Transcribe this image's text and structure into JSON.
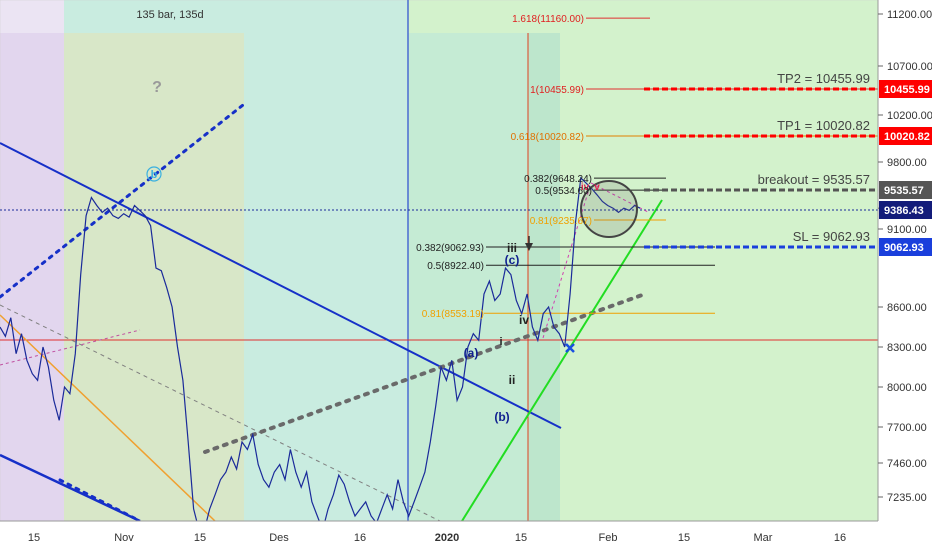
{
  "chart_data": {
    "type": "line",
    "top_label": "135 bar, 135d",
    "question_mark": "?",
    "x_ticks": [
      "15",
      "Nov",
      "15",
      "Des",
      "16",
      "2020",
      "15",
      "Feb",
      "15",
      "Mar",
      "16"
    ],
    "y_ticks": [
      11200.0,
      10700.0,
      10200.0,
      9800.0,
      9400.0,
      9100.0,
      8600.0,
      8300.0,
      8000.0,
      7700.0,
      7460.0,
      7235.0
    ],
    "ylim": [
      7070,
      11350
    ],
    "price_badges": [
      {
        "text": "10455.99",
        "value": 10455.99,
        "color": "#ff0000"
      },
      {
        "text": "10020.82",
        "value": 10020.82,
        "color": "#ff0000"
      },
      {
        "text": "9535.57",
        "value": 9535.57,
        "color": "#555555"
      },
      {
        "text": "9386.43",
        "value": 9386.43,
        "color": "#131c7a"
      },
      {
        "text": "9062.93",
        "value": 9062.93,
        "color": "#1a3fdc"
      }
    ],
    "targets": [
      {
        "text": "TP2 = 10455.99",
        "value": 10455.99,
        "color": "#ff0000"
      },
      {
        "text": "TP1 = 10020.82",
        "value": 10020.82,
        "color": "#ff0000"
      },
      {
        "text": "breakout = 9535.57",
        "value": 9535.57,
        "color": "#555555"
      },
      {
        "text": "SL = 9062.93",
        "value": 9062.93,
        "color": "#1a3fdc"
      }
    ],
    "fib_extension": [
      {
        "text": "1.618(11160.00)",
        "value": 11160.0
      },
      {
        "text": "1(10455.99)",
        "value": 10455.99
      },
      {
        "text": "0.618(10020.82)",
        "value": 10020.82
      }
    ],
    "fib_upper": [
      {
        "text": "0.382(9648.24)",
        "value": 9648.24
      },
      {
        "text": "0.5(9534.60)",
        "value": 9534.6
      },
      {
        "text": "0.81(9235.67)",
        "value": 9235.67
      }
    ],
    "fib_lower": [
      {
        "text": "0.382(9062.93)",
        "value": 9062.93
      },
      {
        "text": "0.5(8922.40)",
        "value": 8922.4
      },
      {
        "text": "0.81(8553.19)",
        "value": 8553.19
      }
    ],
    "wave_labels": [
      "b",
      "(a)",
      "(b)",
      "(c)",
      "iii",
      "iv",
      "ii",
      "i",
      "iv",
      "v"
    ],
    "price_series": [
      8450,
      8380,
      8520,
      8250,
      8400,
      8200,
      8100,
      8050,
      8300,
      8150,
      7900,
      7750,
      8000,
      7950,
      8250,
      8850,
      9300,
      9480,
      9420,
      9350,
      9400,
      9300,
      9260,
      9330,
      9280,
      9420,
      9380,
      9300,
      9150,
      8900,
      8880,
      8750,
      8600,
      8300,
      8050,
      7600,
      7150,
      6950,
      7000,
      7150,
      7250,
      7350,
      7400,
      7500,
      7420,
      7600,
      7550,
      7650,
      7450,
      7350,
      7300,
      7400,
      7450,
      7350,
      7550,
      7400,
      7300,
      7400,
      7200,
      7100,
      7000,
      7150,
      7250,
      7380,
      7320,
      7200,
      7100,
      7150,
      7200,
      7100,
      7050,
      7150,
      7250,
      7150,
      7350,
      7200,
      7100,
      7200,
      7300,
      7400,
      7600,
      7850,
      8150,
      8050,
      8200,
      7900,
      8000,
      8300,
      8400,
      8350,
      8700,
      8800,
      8650,
      8700,
      8900,
      8850,
      8650,
      8550,
      8700,
      8450,
      8350,
      8550,
      8600,
      8450,
      8400,
      8300,
      8700,
      9200,
      9650,
      9600,
      9550,
      9500,
      9450,
      9420,
      9400,
      9350,
      9400,
      9380,
      9420,
      9400
    ]
  }
}
